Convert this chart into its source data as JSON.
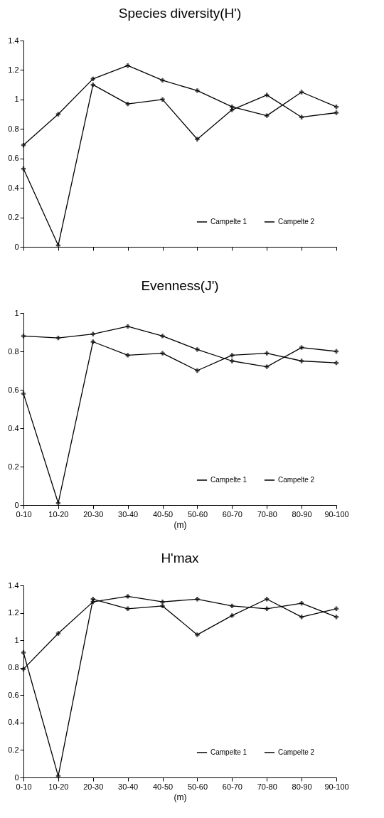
{
  "chart_data": [
    {
      "type": "line",
      "title": "Species diversity(H')",
      "categories": [
        null,
        null,
        null,
        null,
        null,
        null,
        null,
        null,
        null,
        null
      ],
      "ylim": [
        0,
        1.4
      ],
      "yticks": [
        0,
        0.2,
        0.4,
        0.6,
        0.8,
        1,
        1.2,
        1.4
      ],
      "grid": false,
      "legend": "bottom right",
      "marker": "cross",
      "line_style": "solid",
      "tick_labels": "y",
      "series": [
        {
          "name": "Campelte 1",
          "color": "#000000",
          "values": [
            0.69,
            0.9,
            1.14,
            1.23,
            1.13,
            1.06,
            0.95,
            0.89,
            1.05,
            0.95
          ]
        },
        {
          "name": "Campelte 2",
          "color": "#000000",
          "values": [
            0.53,
            0.01,
            1.1,
            0.97,
            1.0,
            0.73,
            0.93,
            1.03,
            0.88,
            0.91
          ]
        }
      ]
    },
    {
      "type": "line",
      "title": "Evenness(J')",
      "xlabel": "(m)",
      "categories": [
        "0-10",
        "10-20",
        "20-30",
        "30-40",
        "40-50",
        "50-60",
        "60-70",
        "70-80",
        "80-90",
        "90-100"
      ],
      "ylim": [
        0,
        1
      ],
      "yticks": [
        0,
        0.2,
        0.4,
        0.6,
        0.8,
        1
      ],
      "grid": false,
      "legend": "bottom right",
      "marker": "cross",
      "line_style": "solid",
      "series": [
        {
          "name": "Campelte 1",
          "color": "#000000",
          "values": [
            0.88,
            0.87,
            0.89,
            0.93,
            0.88,
            0.81,
            0.75,
            0.72,
            0.82,
            0.8
          ]
        },
        {
          "name": "Campelte 2",
          "color": "#000000",
          "values": [
            0.58,
            0.01,
            0.85,
            0.78,
            0.79,
            0.7,
            0.78,
            0.79,
            0.75,
            0.74
          ]
        }
      ]
    },
    {
      "type": "line",
      "title": "H'max",
      "xlabel": "(m)",
      "categories": [
        "0-10",
        "10-20",
        "20-30",
        "30-40",
        "40-50",
        "50-60",
        "60-70",
        "70-80",
        "80-90",
        "90-100"
      ],
      "ylim": [
        0,
        1.4
      ],
      "yticks": [
        0,
        0.2,
        0.4,
        0.6,
        0.8,
        1,
        1.2,
        1.4
      ],
      "grid": false,
      "legend": "bottom right",
      "marker": "cross",
      "line_style": "solid",
      "series": [
        {
          "name": "Campelte 1",
          "color": "#000000",
          "values": [
            0.79,
            1.05,
            1.28,
            1.32,
            1.28,
            1.3,
            1.25,
            1.23,
            1.27,
            1.17
          ]
        },
        {
          "name": "Campelte 2",
          "color": "#000000",
          "values": [
            0.91,
            0.01,
            1.3,
            1.23,
            1.25,
            1.04,
            1.18,
            1.3,
            1.17,
            1.23
          ]
        }
      ]
    }
  ]
}
